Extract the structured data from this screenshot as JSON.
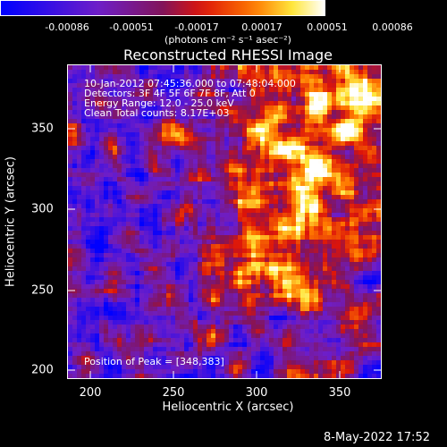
{
  "colorbar": {
    "ticks": [
      "-0.00086",
      "-0.00051",
      "-0.00017",
      "0.00017",
      "0.00051",
      "0.00086"
    ],
    "unit": "(photons cm⁻² s⁻¹ asec⁻²)"
  },
  "title": "Reconstructed RHESSI Image",
  "info": {
    "line1": "10-Jan-2012 07:45:36.000 to 07:48:04.000",
    "line2": "Detectors: 3F 4F 5F 6F 7F 8F, Att 0",
    "line3": "Energy Range: 12.0 - 25.0 keV",
    "line4": "Clean     Total counts: 8.17E+03"
  },
  "peak_text": "Position of Peak = [348,383]",
  "axes": {
    "xlabel": "Heliocentric X (arcsec)",
    "ylabel": "Heliocentric Y (arcsec)",
    "xticks": [
      "200",
      "250",
      "300",
      "350"
    ],
    "yticks": [
      "200",
      "250",
      "300",
      "350"
    ]
  },
  "datestamp": "8-May-2022 17:52",
  "colors": {
    "low": "#0000ff",
    "mid": "#800080",
    "high": "#ff4500",
    "peak": "#ffffff"
  }
}
